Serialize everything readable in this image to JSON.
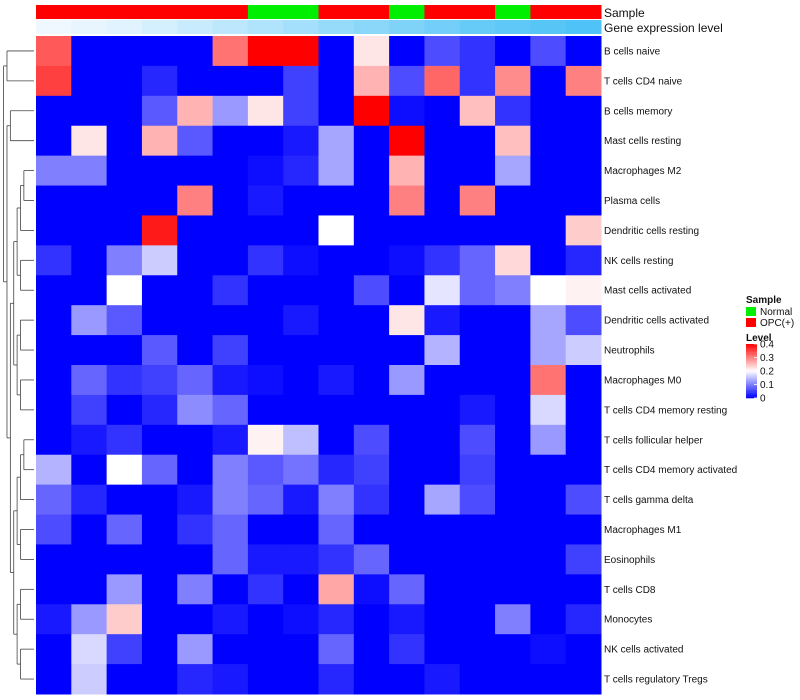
{
  "chart_data": {
    "type": "heatmap",
    "column_annotations": [
      {
        "name": "Sample",
        "values": [
          "OPC(+)",
          "OPC(+)",
          "OPC(+)",
          "OPC(+)",
          "OPC(+)",
          "OPC(+)",
          "Normal",
          "Normal",
          "OPC(+)",
          "OPC(+)",
          "Normal",
          "OPC(+)",
          "OPC(+)",
          "Normal",
          "OPC(+)",
          "OPC(+)"
        ]
      },
      {
        "name": "Gene expression level",
        "values": [
          0.02,
          0.04,
          0.06,
          0.09,
          0.12,
          0.15,
          0.18,
          0.21,
          0.24,
          0.27,
          0.3,
          0.33,
          0.36,
          0.38,
          0.4,
          0.42
        ]
      }
    ],
    "rows": [
      "B cells naive",
      "T cells CD4 naive",
      "B cells memory",
      "Mast cells resting",
      "Macrophages M2",
      "Plasma cells",
      "Dendritic cells resting",
      "NK cells resting",
      "Mast cells activated",
      "Dendritic cells activated",
      "Neutrophils",
      "Macrophages M0",
      "T cells CD4 memory resting",
      "T cells follicular helper",
      "T cells CD4 memory activated",
      "T cells gamma delta",
      "Macrophages M1",
      "Eosinophils",
      "T cells CD8",
      "Monocytes",
      "NK cells activated",
      "T cells regulatory  Tregs"
    ],
    "values": [
      [
        0.33,
        0,
        0,
        0,
        0,
        0.31,
        0.4,
        0.4,
        0,
        0.22,
        0,
        0.06,
        0.04,
        0,
        0.06,
        0
      ],
      [
        0.35,
        0,
        0,
        0.03,
        0,
        0,
        0,
        0.05,
        0,
        0.26,
        0.06,
        0.32,
        0.04,
        0.29,
        0,
        0.3
      ],
      [
        0,
        0,
        0,
        0.07,
        0.26,
        0.12,
        0.22,
        0.05,
        0,
        0.4,
        0.01,
        0,
        0.25,
        0.04,
        0,
        0
      ],
      [
        0,
        0.22,
        0,
        0.26,
        0.07,
        0,
        0,
        0.02,
        0.13,
        0,
        0.4,
        0,
        0,
        0.25,
        0,
        0
      ],
      [
        0.1,
        0.1,
        0,
        0,
        0,
        0,
        0.01,
        0.03,
        0.13,
        0,
        0.26,
        0,
        0,
        0.13,
        0,
        0
      ],
      [
        0,
        0,
        0,
        0,
        0.3,
        0,
        0.02,
        0,
        0,
        0,
        0.3,
        0,
        0.3,
        0,
        0,
        0
      ],
      [
        0,
        0,
        0,
        0.38,
        0,
        0,
        0,
        0,
        0.2,
        0,
        0,
        0,
        0,
        0,
        0,
        0.24
      ],
      [
        0.04,
        0,
        0.1,
        0.16,
        0,
        0,
        0.04,
        0.01,
        0,
        0,
        0.01,
        0.04,
        0.08,
        0.23,
        0,
        0.03
      ],
      [
        0,
        0,
        0.2,
        0,
        0,
        0.04,
        0,
        0,
        0,
        0.06,
        0,
        0.18,
        0.08,
        0.1,
        0.2,
        0.21
      ],
      [
        0,
        0.12,
        0.07,
        0,
        0,
        0,
        0,
        0.02,
        0,
        0,
        0.22,
        0.02,
        0,
        0,
        0.13,
        0.06
      ],
      [
        0,
        0,
        0,
        0.07,
        0,
        0.05,
        0,
        0,
        0,
        0,
        0,
        0.14,
        0,
        0,
        0.13,
        0.16
      ],
      [
        0,
        0.08,
        0.04,
        0.05,
        0.08,
        0.02,
        0.01,
        0,
        0.02,
        0,
        0.12,
        0,
        0,
        0,
        0.31,
        0
      ],
      [
        0,
        0.05,
        0,
        0.03,
        0.11,
        0.08,
        0,
        0,
        0,
        0,
        0,
        0,
        0.02,
        0,
        0.17,
        0
      ],
      [
        0,
        0.02,
        0.04,
        0,
        0,
        0.02,
        0.21,
        0.15,
        0,
        0.06,
        0,
        0,
        0.06,
        0,
        0.12,
        0
      ],
      [
        0.14,
        0,
        0.2,
        0.08,
        0,
        0.1,
        0.07,
        0.09,
        0.03,
        0.05,
        0,
        0,
        0.05,
        0,
        0,
        0
      ],
      [
        0.08,
        0.03,
        0,
        0,
        0.02,
        0.1,
        0.08,
        0.02,
        0.1,
        0.04,
        0,
        0.13,
        0.06,
        0,
        0,
        0.06
      ],
      [
        0.06,
        0,
        0.08,
        0,
        0.04,
        0.08,
        0,
        0,
        0.08,
        0,
        0,
        0,
        0,
        0,
        0,
        0
      ],
      [
        0,
        0,
        0,
        0,
        0,
        0.08,
        0.02,
        0.02,
        0.04,
        0.08,
        0,
        0,
        0,
        0,
        0,
        0.05
      ],
      [
        0,
        0,
        0.12,
        0,
        0.1,
        0,
        0.04,
        0,
        0.27,
        0.01,
        0.08,
        0,
        0,
        0,
        0,
        0
      ],
      [
        0.02,
        0.12,
        0.24,
        0,
        0,
        0.02,
        0,
        0.01,
        0.03,
        0,
        0.02,
        0,
        0,
        0.1,
        0,
        0.03
      ],
      [
        0,
        0.17,
        0.05,
        0,
        0.12,
        0,
        0,
        0,
        0.08,
        0,
        0.04,
        0,
        0,
        0,
        0.01,
        0
      ],
      [
        0,
        0.16,
        0,
        0,
        0.03,
        0.02,
        0,
        0,
        0.03,
        0,
        0,
        0.02,
        0,
        0,
        0,
        0
      ]
    ],
    "legend": {
      "sample": {
        "title": "Sample",
        "entries": [
          {
            "label": "Normal",
            "color": "#00ee00"
          },
          {
            "label": "OPC(+)",
            "color": "#ff0000"
          }
        ]
      },
      "level": {
        "title": "Level",
        "range": [
          0,
          0.4
        ],
        "ticks": [
          {
            "value": 0.4,
            "label": "0.4"
          },
          {
            "value": 0.3,
            "label": "0.3"
          },
          {
            "value": 0.2,
            "label": "0.2"
          },
          {
            "value": 0.1,
            "label": "0.1"
          },
          {
            "value": 0,
            "label": "0"
          }
        ]
      },
      "placement": "right"
    },
    "colors": {
      "low": "#0000ff",
      "mid": "#ffffff",
      "high": "#ff0000",
      "expression_low": "#f0f8ff",
      "expression_high": "#4fc3f7"
    },
    "grid": false,
    "dendrogram": "rows"
  }
}
